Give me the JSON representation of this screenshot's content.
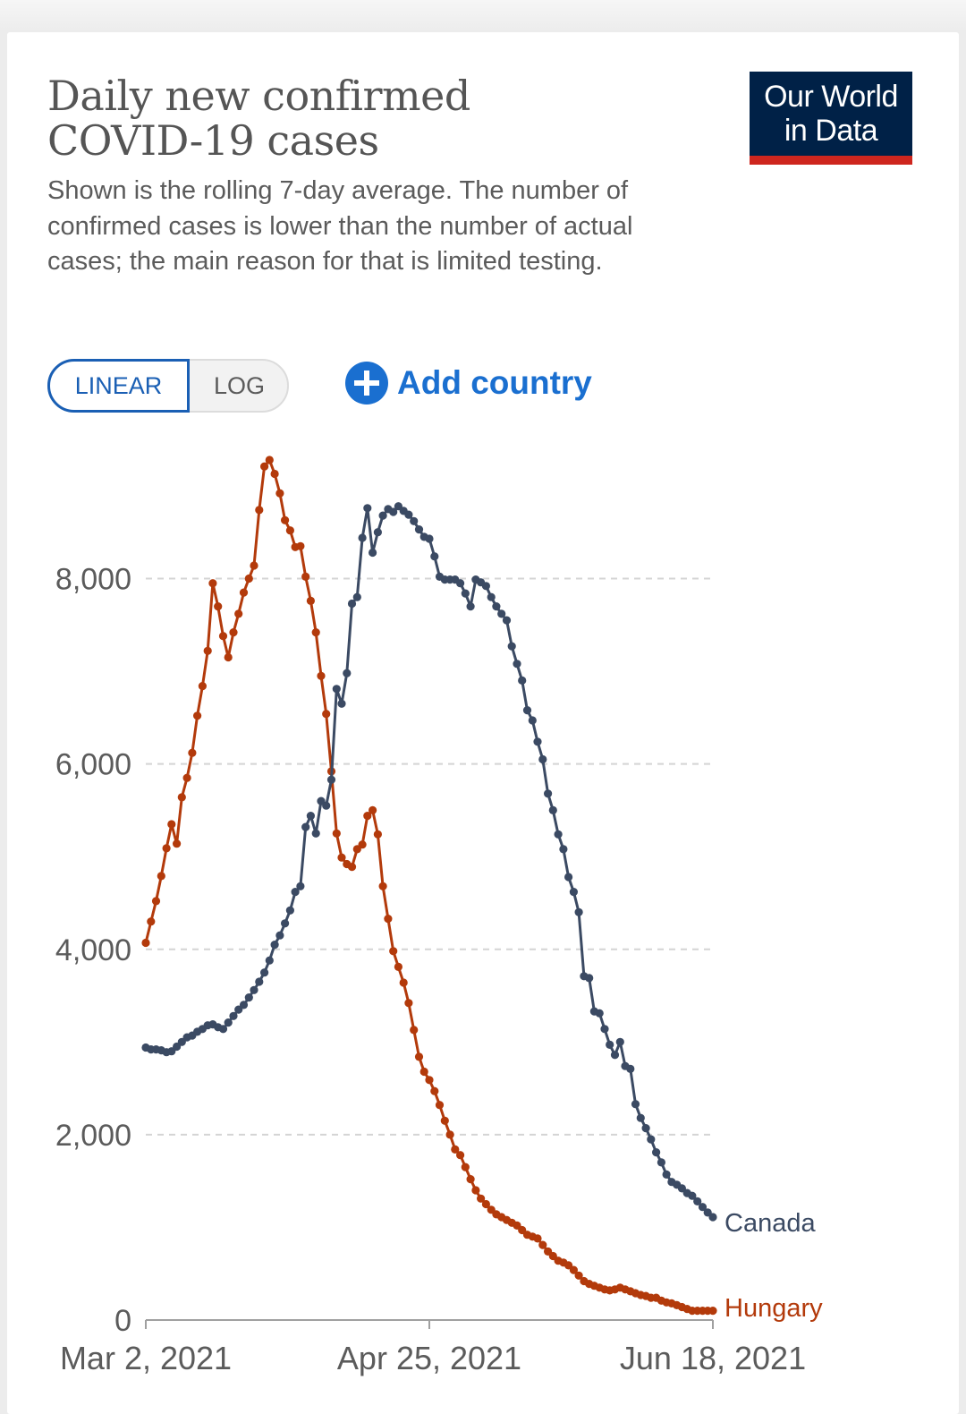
{
  "header": {
    "title": "Daily new confirmed COVID-19 cases",
    "subtitle": "Shown is the rolling 7-day average. The number of confirmed cases is lower than the number of actual cases; the main reason for that is limited testing.",
    "logo_line1": "Our World",
    "logo_line2": "in Data"
  },
  "controls": {
    "linear_label": "LINEAR",
    "log_label": "LOG",
    "add_country_label": "Add country"
  },
  "colors": {
    "canada": "#3b4a63",
    "hungary": "#b33a0b",
    "accent": "#1a6fd0",
    "logo_bg": "#002147",
    "logo_stripe": "#ce261e"
  },
  "chart_data": {
    "type": "line",
    "title": "Daily new confirmed COVID-19 cases",
    "x_start": "Mar 2, 2021",
    "x_end": "Jun 18, 2021",
    "x_tick_labels": [
      "Mar 2, 2021",
      "Apr 25, 2021",
      "Jun 18, 2021"
    ],
    "y_tick_labels": [
      "0",
      "2,000",
      "4,000",
      "6,000",
      "8,000"
    ],
    "y_ticks": [
      0,
      2000,
      4000,
      6000,
      8000
    ],
    "ylim": [
      0,
      9300
    ],
    "grid": true,
    "scale": "linear",
    "series": [
      {
        "name": "Canada",
        "values": [
          2940,
          2920,
          2920,
          2910,
          2890,
          2900,
          2950,
          3000,
          3050,
          3070,
          3110,
          3140,
          3180,
          3190,
          3160,
          3140,
          3210,
          3280,
          3350,
          3400,
          3480,
          3560,
          3650,
          3750,
          3880,
          4050,
          4150,
          4280,
          4420,
          4620,
          4680,
          5320,
          5440,
          5250,
          5600,
          5550,
          5830,
          6810,
          6650,
          6980,
          7730,
          7800,
          8440,
          8760,
          8280,
          8500,
          8680,
          8750,
          8720,
          8780,
          8730,
          8690,
          8620,
          8530,
          8450,
          8430,
          8240,
          8020,
          7990,
          7990,
          7990,
          7950,
          7840,
          7700,
          7990,
          7960,
          7920,
          7800,
          7700,
          7620,
          7550,
          7270,
          7080,
          6900,
          6580,
          6470,
          6240,
          6050,
          5680,
          5500,
          5240,
          5080,
          4780,
          4620,
          4400,
          3710,
          3690,
          3330,
          3310,
          3140,
          2970,
          2860,
          3000,
          2740,
          2710,
          2330,
          2180,
          2070,
          1950,
          1810,
          1700,
          1570,
          1490,
          1460,
          1420,
          1370,
          1340,
          1280,
          1220,
          1160,
          1110
        ]
      },
      {
        "name": "Hungary",
        "values": [
          4070,
          4300,
          4520,
          4790,
          5090,
          5350,
          5140,
          5640,
          5850,
          6120,
          6520,
          6840,
          7220,
          7950,
          7700,
          7380,
          7150,
          7420,
          7620,
          7850,
          8000,
          8140,
          8740,
          9210,
          9280,
          9130,
          8920,
          8630,
          8520,
          8340,
          8350,
          8020,
          7760,
          7420,
          6950,
          6540,
          5920,
          5250,
          4990,
          4920,
          4890,
          5080,
          5130,
          5440,
          5500,
          5240,
          4680,
          4330,
          3980,
          3810,
          3640,
          3420,
          3130,
          2840,
          2680,
          2590,
          2470,
          2320,
          2150,
          2000,
          1840,
          1780,
          1650,
          1520,
          1400,
          1310,
          1250,
          1190,
          1140,
          1110,
          1080,
          1050,
          1020,
          970,
          920,
          900,
          880,
          810,
          740,
          690,
          640,
          620,
          590,
          540,
          480,
          420,
          390,
          370,
          350,
          330,
          320,
          330,
          350,
          330,
          310,
          290,
          270,
          260,
          240,
          240,
          210,
          190,
          180,
          160,
          140,
          120,
          100,
          100,
          100,
          100,
          100
        ]
      }
    ]
  }
}
